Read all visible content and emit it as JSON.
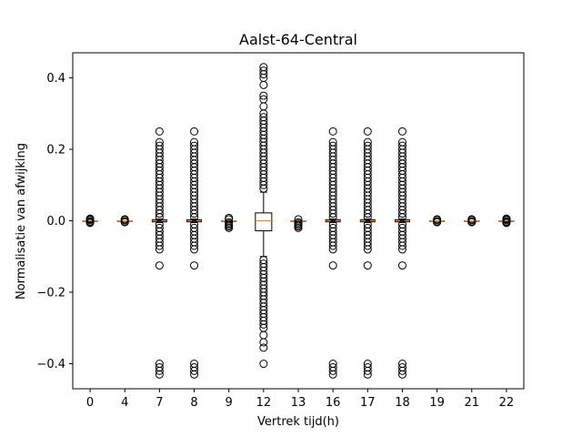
{
  "chart_data": {
    "type": "boxplot",
    "title": "Aalst-64-Central",
    "xlabel": "Vertrek tijd(h)",
    "ylabel": "Normalisatie van afwijking",
    "ylim": [
      -0.47,
      0.47
    ],
    "yticks": [
      -0.4,
      -0.2,
      0.0,
      0.2,
      0.4
    ],
    "ytick_labels": [
      "−0.4",
      "−0.2",
      "0.0",
      "0.2",
      "0.4"
    ],
    "grid": false,
    "colors": {
      "box": "#000000",
      "median": "#ff7f0e",
      "outlier_edge": "#000000"
    },
    "categories": [
      "0",
      "4",
      "7",
      "8",
      "9",
      "12",
      "13",
      "16",
      "17",
      "18",
      "19",
      "21",
      "22"
    ],
    "boxes": [
      {
        "category": "0",
        "q1": 0,
        "median": 0,
        "q3": 0,
        "whisker_low": 0,
        "whisker_high": 0,
        "outliers": [
          -0.006,
          -0.004,
          -0.002,
          0.002,
          0.004,
          0.006
        ]
      },
      {
        "category": "4",
        "q1": 0,
        "median": 0,
        "q3": 0,
        "whisker_low": 0,
        "whisker_high": 0,
        "outliers": [
          -0.004,
          -0.002,
          0.002,
          0.004
        ]
      },
      {
        "category": "7",
        "q1": -0.003,
        "median": 0,
        "q3": 0.003,
        "whisker_low": -0.005,
        "whisker_high": 0.005,
        "outliers": [
          0.25,
          0.22,
          0.21,
          0.2,
          0.19,
          0.18,
          0.17,
          0.16,
          0.15,
          0.14,
          0.13,
          0.12,
          0.11,
          0.1,
          0.09,
          0.08,
          0.07,
          0.06,
          0.05,
          0.04,
          0.03,
          0.02,
          0.01,
          -0.01,
          -0.02,
          -0.03,
          -0.04,
          -0.05,
          -0.06,
          -0.07,
          -0.08,
          -0.125,
          -0.4,
          -0.41,
          -0.42,
          -0.43
        ]
      },
      {
        "category": "8",
        "q1": -0.003,
        "median": 0,
        "q3": 0.003,
        "whisker_low": -0.005,
        "whisker_high": 0.005,
        "outliers": [
          0.25,
          0.22,
          0.21,
          0.2,
          0.19,
          0.18,
          0.17,
          0.16,
          0.15,
          0.14,
          0.13,
          0.12,
          0.11,
          0.1,
          0.09,
          0.08,
          0.07,
          0.06,
          0.05,
          0.04,
          0.03,
          0.02,
          0.01,
          -0.01,
          -0.02,
          -0.03,
          -0.04,
          -0.05,
          -0.06,
          -0.07,
          -0.08,
          -0.125,
          -0.4,
          -0.41,
          -0.42,
          -0.43
        ]
      },
      {
        "category": "9",
        "q1": 0,
        "median": 0,
        "q3": 0,
        "whisker_low": 0,
        "whisker_high": 0,
        "outliers": [
          0.008,
          0.004,
          -0.004,
          -0.008,
          -0.012,
          -0.016,
          -0.02
        ]
      },
      {
        "category": "12",
        "q1": -0.028,
        "median": 0,
        "q3": 0.022,
        "whisker_low": -0.1,
        "whisker_high": 0.08,
        "outliers": [
          0.43,
          0.42,
          0.41,
          0.4,
          0.38,
          0.35,
          0.34,
          0.32,
          0.3,
          0.29,
          0.28,
          0.27,
          0.26,
          0.25,
          0.24,
          0.23,
          0.22,
          0.21,
          0.2,
          0.19,
          0.18,
          0.17,
          0.16,
          0.15,
          0.14,
          0.13,
          0.12,
          0.11,
          0.1,
          0.09,
          -0.11,
          -0.12,
          -0.13,
          -0.14,
          -0.15,
          -0.16,
          -0.17,
          -0.18,
          -0.19,
          -0.2,
          -0.21,
          -0.22,
          -0.23,
          -0.24,
          -0.25,
          -0.26,
          -0.27,
          -0.28,
          -0.29,
          -0.3,
          -0.32,
          -0.34,
          -0.355,
          -0.4
        ]
      },
      {
        "category": "13",
        "q1": 0,
        "median": 0,
        "q3": 0,
        "whisker_low": 0,
        "whisker_high": 0,
        "outliers": [
          0.004,
          -0.004,
          -0.008,
          -0.012,
          -0.016,
          -0.02
        ]
      },
      {
        "category": "16",
        "q1": -0.003,
        "median": 0,
        "q3": 0.003,
        "whisker_low": -0.005,
        "whisker_high": 0.005,
        "outliers": [
          0.25,
          0.22,
          0.21,
          0.2,
          0.19,
          0.18,
          0.17,
          0.16,
          0.15,
          0.14,
          0.13,
          0.12,
          0.11,
          0.1,
          0.09,
          0.08,
          0.07,
          0.06,
          0.05,
          0.04,
          0.03,
          0.02,
          0.01,
          -0.01,
          -0.02,
          -0.03,
          -0.04,
          -0.05,
          -0.06,
          -0.07,
          -0.08,
          -0.125,
          -0.4,
          -0.41,
          -0.42,
          -0.43
        ]
      },
      {
        "category": "17",
        "q1": -0.003,
        "median": 0,
        "q3": 0.003,
        "whisker_low": -0.005,
        "whisker_high": 0.005,
        "outliers": [
          0.25,
          0.22,
          0.21,
          0.2,
          0.19,
          0.18,
          0.17,
          0.16,
          0.15,
          0.14,
          0.13,
          0.12,
          0.11,
          0.1,
          0.09,
          0.08,
          0.07,
          0.06,
          0.05,
          0.04,
          0.03,
          0.02,
          0.01,
          -0.01,
          -0.02,
          -0.03,
          -0.04,
          -0.05,
          -0.06,
          -0.07,
          -0.08,
          -0.125,
          -0.4,
          -0.41,
          -0.42,
          -0.43
        ]
      },
      {
        "category": "18",
        "q1": -0.003,
        "median": 0,
        "q3": 0.003,
        "whisker_low": -0.005,
        "whisker_high": 0.005,
        "outliers": [
          0.25,
          0.22,
          0.21,
          0.2,
          0.19,
          0.18,
          0.17,
          0.16,
          0.15,
          0.14,
          0.13,
          0.12,
          0.11,
          0.1,
          0.09,
          0.08,
          0.07,
          0.06,
          0.05,
          0.04,
          0.03,
          0.02,
          0.01,
          -0.01,
          -0.02,
          -0.03,
          -0.04,
          -0.05,
          -0.06,
          -0.07,
          -0.08,
          -0.125,
          -0.4,
          -0.41,
          -0.42,
          -0.43
        ]
      },
      {
        "category": "19",
        "q1": 0,
        "median": 0,
        "q3": 0,
        "whisker_low": 0,
        "whisker_high": 0,
        "outliers": [
          -0.004,
          -0.002,
          0.002,
          0.004
        ]
      },
      {
        "category": "21",
        "q1": 0,
        "median": 0,
        "q3": 0,
        "whisker_low": 0,
        "whisker_high": 0,
        "outliers": [
          -0.004,
          -0.002,
          0.002,
          0.004
        ]
      },
      {
        "category": "22",
        "q1": 0,
        "median": 0,
        "q3": 0,
        "whisker_low": 0,
        "whisker_high": 0,
        "outliers": [
          -0.006,
          -0.004,
          -0.002,
          0.002,
          0.004,
          0.006
        ]
      }
    ]
  }
}
